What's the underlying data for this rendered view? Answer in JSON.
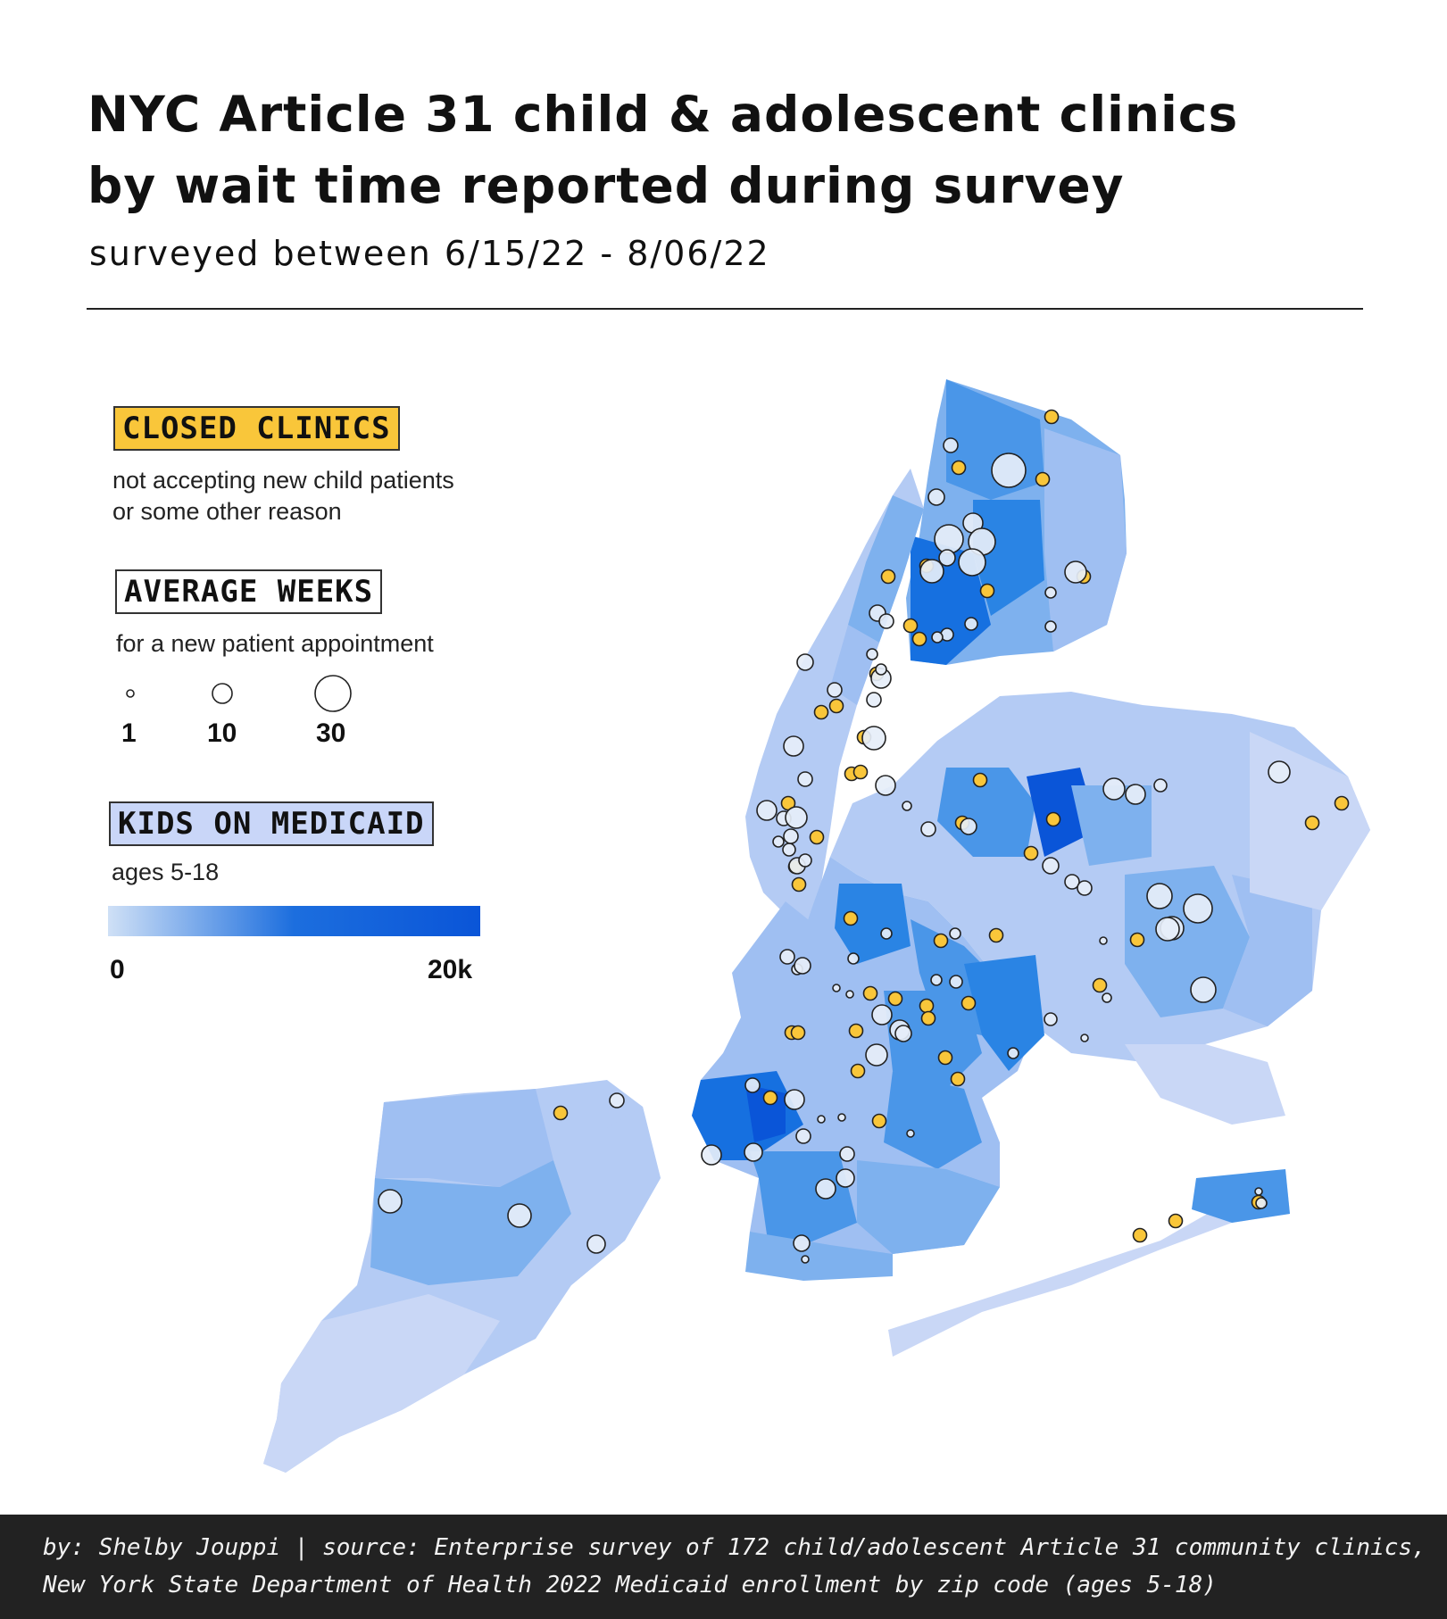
{
  "header": {
    "title_line1": "NYC Article 31 child & adolescent clinics",
    "title_line2": "by wait time reported during survey",
    "subtitle": "surveyed between 6/15/22 - 8/06/22"
  },
  "legend": {
    "closed": {
      "tag": "CLOSED CLINICS",
      "line1": "not accepting new child patients",
      "line2": "or some other reason",
      "color": "#f9c63a"
    },
    "weeks": {
      "tag": "AVERAGE WEEKS",
      "description": "for a new patient appointment",
      "sizes": [
        {
          "value": 1,
          "label": "1"
        },
        {
          "value": 10,
          "label": "10"
        },
        {
          "value": 30,
          "label": "30"
        }
      ],
      "circle_color": "#e6eef9"
    },
    "medicaid": {
      "tag": "KIDS ON MEDICAID",
      "description": "ages 5-18",
      "min_label": "0",
      "max_label": "20k",
      "color_low": "#cfe0f6",
      "color_high": "#0a55d8"
    }
  },
  "map": {
    "fill_colors": [
      "#c9d7f6",
      "#b4cbf4",
      "#9fbff2",
      "#7eb1ee",
      "#4a96e8",
      "#2a84e4",
      "#1670e0",
      "#0a55d8"
    ]
  },
  "footer": {
    "line1": "by: Shelby Jouppi | source: Enterprise survey of 172 child/adolescent Article 31 community clinics,",
    "line2": "New York State Department of Health 2022 Medicaid enrollment by zip code (ages 5-18)"
  }
}
